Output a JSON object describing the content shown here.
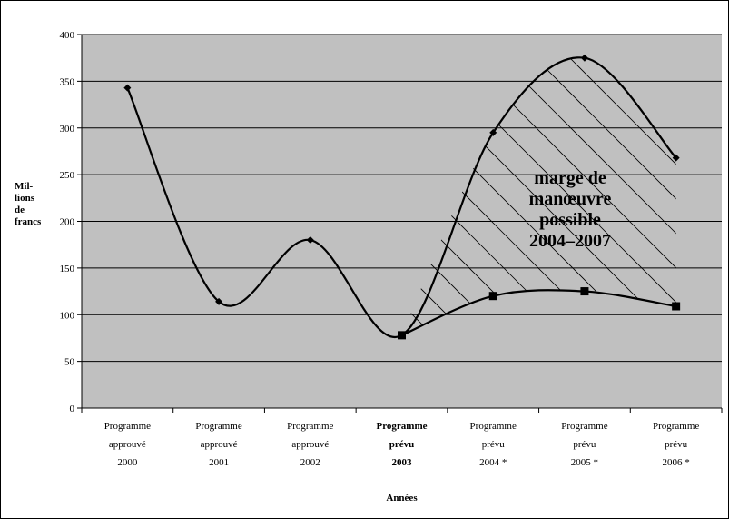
{
  "chart_data": {
    "type": "line",
    "ylabel": [
      "Mil-",
      "lions",
      "de",
      "francs"
    ],
    "xlabel": "Années",
    "ylim": [
      0,
      400
    ],
    "yticks": [
      0,
      50,
      100,
      150,
      200,
      250,
      300,
      350,
      400
    ],
    "grid": true,
    "categories": [
      {
        "lines": [
          "Programme",
          "approuvé",
          "2000"
        ],
        "bold": false
      },
      {
        "lines": [
          "Programme",
          "approuvé",
          "2001"
        ],
        "bold": false
      },
      {
        "lines": [
          "Programme",
          "approuvé",
          "2002"
        ],
        "bold": false
      },
      {
        "lines": [
          "Programme",
          "prévu",
          "2003"
        ],
        "bold": true
      },
      {
        "lines": [
          "Programme",
          "prévu",
          "2004 *"
        ],
        "bold": false
      },
      {
        "lines": [
          "Programme",
          "prévu",
          "2005 *"
        ],
        "bold": false
      },
      {
        "lines": [
          "Programme",
          "prévu",
          "2006 *"
        ],
        "bold": false
      }
    ],
    "series": [
      {
        "marker": "diamond",
        "values": [
          343,
          114,
          180,
          78,
          295,
          375,
          268
        ]
      },
      {
        "marker": "square",
        "values": [
          null,
          null,
          null,
          78,
          120,
          125,
          109
        ]
      }
    ],
    "annotation": {
      "lines": [
        "marge de",
        "manœuvre",
        "possible",
        "2004–2007"
      ]
    }
  },
  "colors": {
    "plot_bg": "#c0c0c0",
    "line": "#000000",
    "background": "#ffffff"
  }
}
